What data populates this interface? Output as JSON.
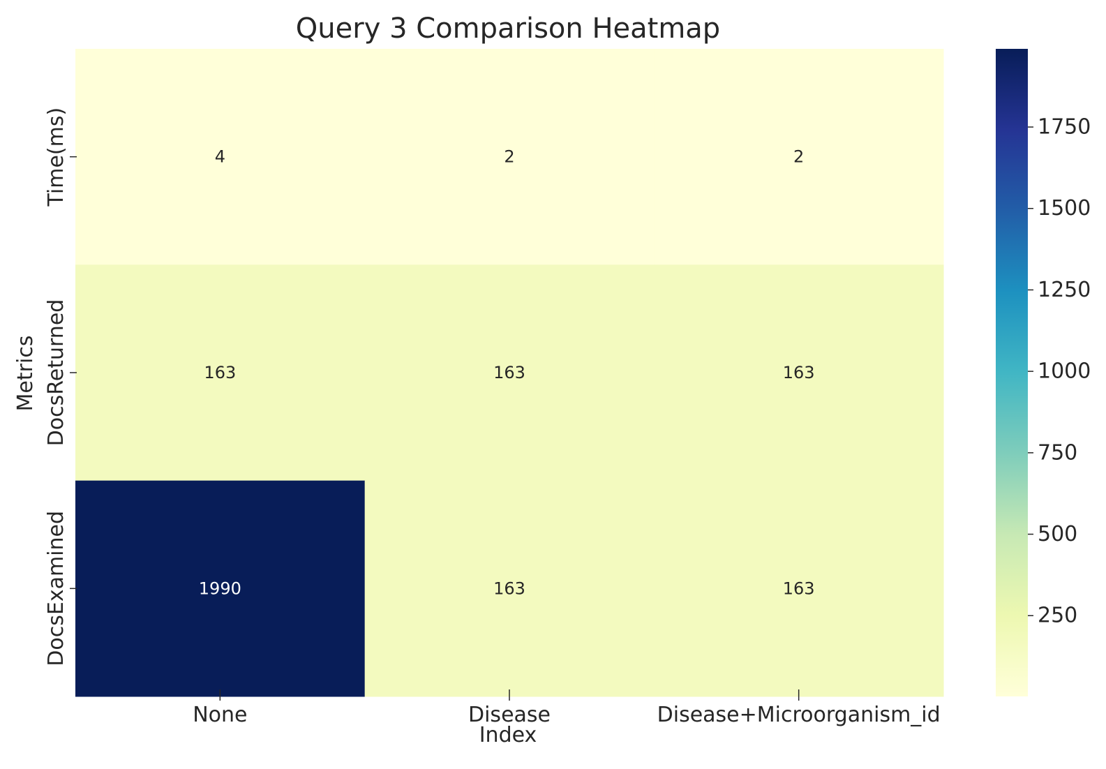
{
  "chart_data": {
    "type": "heatmap",
    "title": "Query 3 Comparison Heatmap",
    "xlabel": "Index",
    "ylabel": "Metrics",
    "x_categories": [
      "None",
      "Disease",
      "Disease+Microorganism_id"
    ],
    "y_categories": [
      "Time(ms)",
      "DocsReturned",
      "DocsExamined"
    ],
    "values": [
      [
        4,
        2,
        2
      ],
      [
        163,
        163,
        163
      ],
      [
        1990,
        163,
        163
      ]
    ],
    "cell_labels": [
      [
        "4",
        "2",
        "2"
      ],
      [
        "163",
        "163",
        "163"
      ],
      [
        "1990",
        "163",
        "163"
      ]
    ],
    "colormap": "YlGnBu",
    "vmin": 2,
    "vmax": 1990,
    "colorbar": {
      "ticks": [
        250,
        500,
        750,
        1000,
        1250,
        1500,
        1750
      ],
      "tick_labels": [
        "250",
        "500",
        "750",
        "1000",
        "1250",
        "1500",
        "1750"
      ]
    },
    "grid": false
  }
}
